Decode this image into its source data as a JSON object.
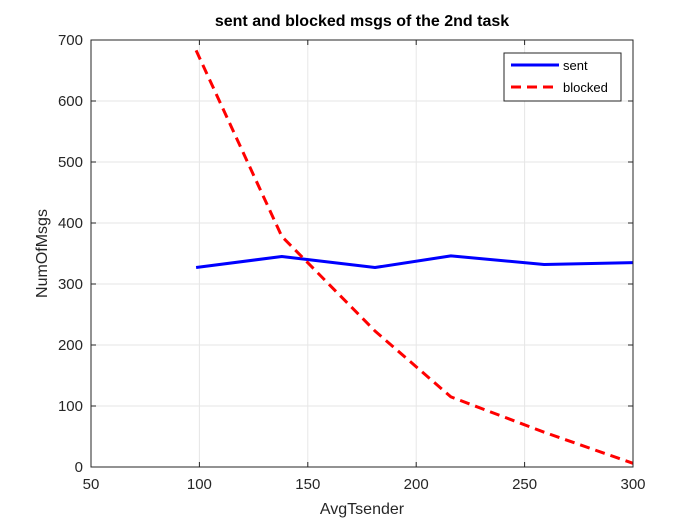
{
  "chart_data": {
    "type": "line",
    "title": "sent and blocked msgs of the 2nd task",
    "xlabel": "AvgTsender",
    "ylabel": "NumOfMsgs",
    "xlim": [
      50,
      300
    ],
    "ylim": [
      0,
      700
    ],
    "xticks": [
      50,
      100,
      150,
      200,
      250,
      300
    ],
    "yticks": [
      0,
      100,
      200,
      300,
      400,
      500,
      600,
      700
    ],
    "grid": true,
    "legend_position": "top-right",
    "series": [
      {
        "name": "sent",
        "color": "#0000ff",
        "line_style": "solid",
        "x": [
          98.5,
          138,
          181,
          216,
          259,
          300
        ],
        "y": [
          327,
          345,
          327,
          346,
          332,
          335
        ]
      },
      {
        "name": "blocked",
        "color": "#ff0000",
        "line_style": "dashed",
        "x": [
          98.5,
          138,
          181,
          216,
          259,
          300
        ],
        "y": [
          683,
          378,
          223,
          115,
          57,
          6
        ]
      }
    ]
  }
}
